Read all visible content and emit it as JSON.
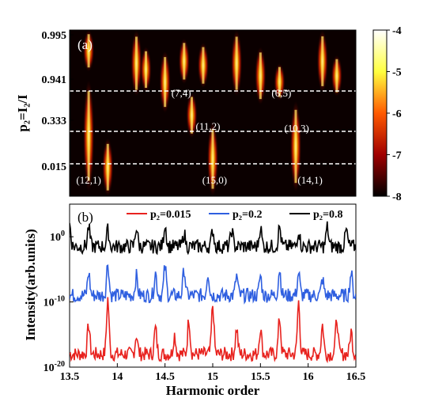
{
  "chart_data": [
    {
      "type": "heatmap",
      "panel_label": "(a)",
      "ylabel": "p₂=I₂/I",
      "ytick_labels": [
        "0.995",
        "0.941",
        "0.333",
        "0.015"
      ],
      "xlim": [
        13.5,
        16.5
      ],
      "colorbar": {
        "ticks": [
          -4,
          -5,
          -6,
          -7,
          -8
        ],
        "range": [
          -8,
          -4
        ],
        "colormap": "hot"
      },
      "dashed_lines": [
        "0.015",
        "0.333",
        "0.941"
      ],
      "annotations": [
        {
          "text": "(12,1)",
          "x": 13.7,
          "row": 3.6
        },
        {
          "text": "(7,4)",
          "x": 14.67,
          "row": 1.5
        },
        {
          "text": "(11,2)",
          "x": 14.95,
          "row": 2.3
        },
        {
          "text": "(15,0)",
          "x": 15.02,
          "row": 3.6
        },
        {
          "text": "(6,5)",
          "x": 15.72,
          "row": 1.5
        },
        {
          "text": "(10,3)",
          "x": 15.88,
          "row": 2.35
        },
        {
          "text": "(14,1)",
          "x": 16.02,
          "row": 3.6
        }
      ],
      "peaks": [
        {
          "x": 13.7,
          "bands": [
            [
              0,
              1
            ],
            [
              1.2,
              3.9
            ]
          ]
        },
        {
          "x": 13.9,
          "bands": [
            [
              2.6,
              4.0
            ]
          ]
        },
        {
          "x": 14.2,
          "bands": [
            [
              0,
              1.6
            ]
          ]
        },
        {
          "x": 14.3,
          "bands": [
            [
              0.4,
              1.5
            ]
          ]
        },
        {
          "x": 14.5,
          "bands": [
            [
              0.5,
              2.0
            ]
          ]
        },
        {
          "x": 14.7,
          "bands": [
            [
              0.2,
              1.3
            ]
          ]
        },
        {
          "x": 14.78,
          "bands": [
            [
              1.5,
              2.6
            ]
          ]
        },
        {
          "x": 14.9,
          "bands": [
            [
              0.3,
              1.4
            ]
          ]
        },
        {
          "x": 15.0,
          "bands": [
            [
              2.2,
              4.0
            ]
          ]
        },
        {
          "x": 15.25,
          "bands": [
            [
              0,
              1.6
            ]
          ]
        },
        {
          "x": 15.5,
          "bands": [
            [
              0.4,
              1.8
            ]
          ]
        },
        {
          "x": 15.7,
          "bands": [
            [
              0.8,
              1.7
            ]
          ]
        },
        {
          "x": 15.87,
          "bands": [
            [
              1.7,
              3.9
            ]
          ]
        },
        {
          "x": 16.15,
          "bands": [
            [
              0,
              1.5
            ]
          ]
        },
        {
          "x": 16.3,
          "bands": [
            [
              0.6,
              1.6
            ]
          ]
        }
      ]
    },
    {
      "type": "line",
      "panel_label": "(b)",
      "xlabel": "Harmonic order",
      "ylabel": "Intensity(arb.units)",
      "xlim": [
        13.5,
        16.5
      ],
      "xticks": [
        13.5,
        14,
        14.5,
        15,
        15.5,
        16,
        16.5
      ],
      "xtick_labels": [
        "13.5",
        "14",
        "14.5",
        "15",
        "15.5",
        "16",
        "16.5"
      ],
      "yscale": "log",
      "ylim_exponent": [
        -20,
        5
      ],
      "yticks": [
        {
          "base": "10",
          "exp": "0",
          "value": 0
        },
        {
          "base": "10",
          "exp": "-10",
          "value": -10
        },
        {
          "base": "10",
          "exp": "-20",
          "value": -20
        }
      ],
      "legend_position": "top",
      "series": [
        {
          "name": "p₂=0.015",
          "color": "#e8231f",
          "baseline": -18,
          "amplitude": 1.0,
          "peak_positions": [
            13.7,
            13.9,
            14.2,
            14.4,
            14.6,
            14.75,
            15.0,
            15.25,
            15.5,
            15.7,
            15.9,
            16.15,
            16.3,
            16.45
          ],
          "peak_heights": [
            4.5,
            8.5,
            3.0,
            4.0,
            3.0,
            5.5,
            7.5,
            4.0,
            4.0,
            5.5,
            8.0,
            4.5,
            5.5,
            3.5
          ]
        },
        {
          "name": "p₂=0.2",
          "color": "#2f5fe0",
          "baseline": -9,
          "amplitude": 1.0,
          "peak_positions": [
            13.7,
            13.9,
            14.2,
            14.4,
            14.5,
            14.7,
            14.95,
            15.25,
            15.5,
            15.7,
            15.9,
            16.15,
            16.45
          ],
          "peak_heights": [
            3.5,
            5.0,
            3.0,
            3.5,
            4.5,
            4.0,
            3.5,
            3.0,
            3.0,
            4.0,
            3.5,
            2.5,
            3.5
          ]
        },
        {
          "name": "p₂=0.8",
          "color": "#000000",
          "baseline": -1.5,
          "amplitude": 1.0,
          "peak_positions": [
            13.5,
            13.7,
            13.9,
            14.2,
            14.5,
            14.7,
            15.0,
            15.2,
            15.5,
            15.7,
            15.9,
            16.2,
            16.4
          ],
          "peak_heights": [
            3.5,
            3.0,
            2.5,
            3.0,
            3.5,
            2.0,
            2.5,
            2.5,
            3.0,
            3.0,
            2.5,
            3.0,
            2.5
          ]
        }
      ]
    }
  ]
}
